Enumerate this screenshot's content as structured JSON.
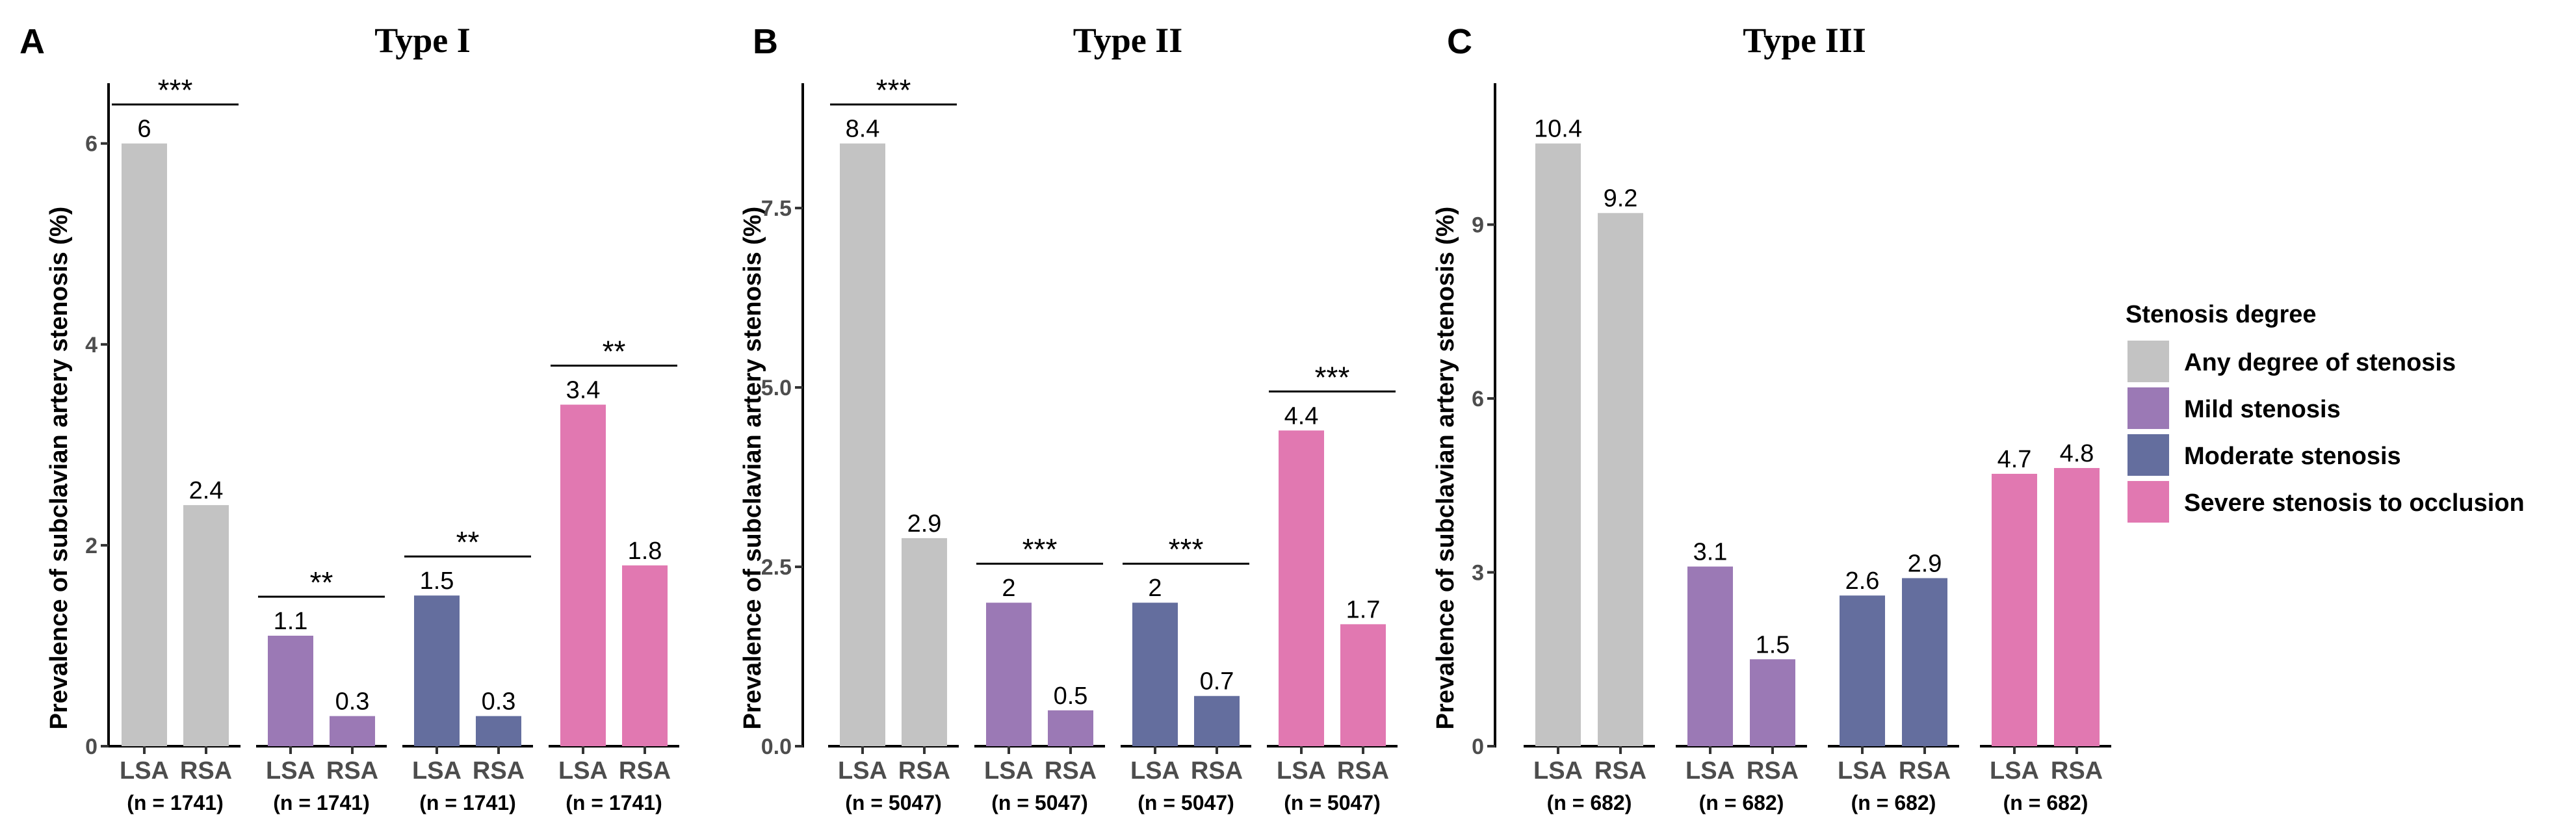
{
  "colors": {
    "Any degree of stenosis": "#c3c3c3",
    "Mild stenosis": "#9b79b5",
    "Moderate stenosis": "#646e9e",
    "Severe stenosis to occlusion": "#e178b1"
  },
  "legend": {
    "title": "Stenosis degree",
    "items": [
      "Any degree of stenosis",
      "Mild stenosis",
      "Moderate stenosis",
      "Severe stenosis to occlusion"
    ]
  },
  "chart_data": [
    {
      "type": "bar",
      "panel": "A",
      "title": "Type I",
      "ylabel": "Prevalence of subclavian artery stenosis (%)",
      "xlabel": "",
      "ylim": [
        0,
        6.6
      ],
      "yticks": [
        "0",
        "2",
        "4",
        "6"
      ],
      "ytick_values": [
        0,
        2,
        4,
        6
      ],
      "groups": [
        {
          "series": "Any degree of stenosis",
          "categories": [
            "LSA",
            "RSA"
          ],
          "values": [
            6,
            2.4
          ],
          "value_labels": [
            "6",
            "2.4"
          ],
          "n_label": "(n = 1741)",
          "significance": "***"
        },
        {
          "series": "Mild stenosis",
          "categories": [
            "LSA",
            "RSA"
          ],
          "values": [
            1.1,
            0.3
          ],
          "value_labels": [
            "1.1",
            "0.3"
          ],
          "n_label": "(n = 1741)",
          "significance": "**"
        },
        {
          "series": "Moderate stenosis",
          "categories": [
            "LSA",
            "RSA"
          ],
          "values": [
            1.5,
            0.3
          ],
          "value_labels": [
            "1.5",
            "0.3"
          ],
          "n_label": "(n = 1741)",
          "significance": "**"
        },
        {
          "series": "Severe stenosis to occlusion",
          "categories": [
            "LSA",
            "RSA"
          ],
          "values": [
            3.4,
            1.8
          ],
          "value_labels": [
            "3.4",
            "1.8"
          ],
          "n_label": "(n = 1741)",
          "significance": "**"
        }
      ]
    },
    {
      "type": "bar",
      "panel": "B",
      "title": "Type II",
      "ylabel": "Prevalence of subclavian artery stenosis (%)",
      "xlabel": "",
      "ylim": [
        0,
        9.24
      ],
      "yticks": [
        "0.0",
        "2.5",
        "5.0",
        "7.5"
      ],
      "ytick_values": [
        0,
        2.5,
        5,
        7.5
      ],
      "groups": [
        {
          "series": "Any degree of stenosis",
          "categories": [
            "LSA",
            "RSA"
          ],
          "values": [
            8.4,
            2.9
          ],
          "value_labels": [
            "8.4",
            "2.9"
          ],
          "n_label": "(n = 5047)",
          "significance": "***"
        },
        {
          "series": "Mild stenosis",
          "categories": [
            "LSA",
            "RSA"
          ],
          "values": [
            2,
            0.5
          ],
          "value_labels": [
            "2",
            "0.5"
          ],
          "n_label": "(n = 5047)",
          "significance": "***"
        },
        {
          "series": "Moderate stenosis",
          "categories": [
            "LSA",
            "RSA"
          ],
          "values": [
            2,
            0.7
          ],
          "value_labels": [
            "2",
            "0.7"
          ],
          "n_label": "(n = 5047)",
          "significance": "***"
        },
        {
          "series": "Severe stenosis to occlusion",
          "categories": [
            "LSA",
            "RSA"
          ],
          "values": [
            4.4,
            1.7
          ],
          "value_labels": [
            "4.4",
            "1.7"
          ],
          "n_label": "(n = 5047)",
          "significance": "***"
        }
      ]
    },
    {
      "type": "bar",
      "panel": "C",
      "title": "Type III",
      "ylabel": "Prevalence of subclavian artery stenosis (%)",
      "xlabel": "",
      "ylim": [
        0,
        11.44
      ],
      "yticks": [
        "0",
        "3",
        "6",
        "9"
      ],
      "ytick_values": [
        0,
        3,
        6,
        9
      ],
      "groups": [
        {
          "series": "Any degree of stenosis",
          "categories": [
            "LSA",
            "RSA"
          ],
          "values": [
            10.4,
            9.2
          ],
          "value_labels": [
            "10.4",
            "9.2"
          ],
          "n_label": "(n = 682)",
          "significance": ""
        },
        {
          "series": "Mild stenosis",
          "categories": [
            "LSA",
            "RSA"
          ],
          "values": [
            3.1,
            1.5
          ],
          "value_labels": [
            "3.1",
            "1.5"
          ],
          "n_label": "(n = 682)",
          "significance": ""
        },
        {
          "series": "Moderate stenosis",
          "categories": [
            "LSA",
            "RSA"
          ],
          "values": [
            2.6,
            2.9
          ],
          "value_labels": [
            "2.6",
            "2.9"
          ],
          "n_label": "(n = 682)",
          "significance": ""
        },
        {
          "series": "Severe stenosis to occlusion",
          "categories": [
            "LSA",
            "RSA"
          ],
          "values": [
            4.7,
            4.8
          ],
          "value_labels": [
            "4.7",
            "4.8"
          ],
          "n_label": "(n = 682)",
          "significance": ""
        }
      ]
    }
  ]
}
